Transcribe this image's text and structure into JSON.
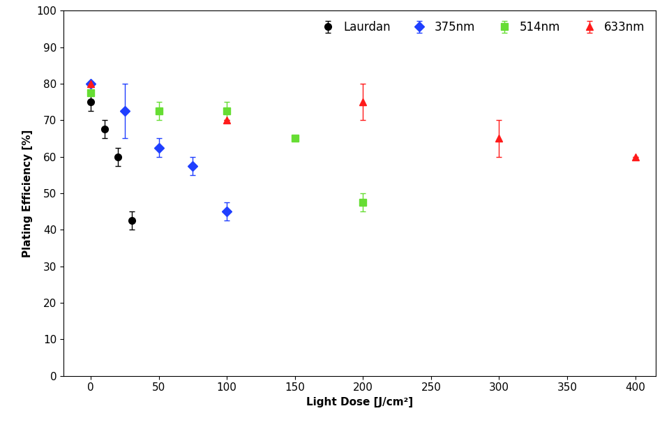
{
  "chart_data": {
    "type": "scatter",
    "x_label": "Light Dose [J/cm²]",
    "y_label": "Plating Efficiency [%]",
    "xlim": [
      -20,
      415
    ],
    "xticks": [
      0,
      50,
      100,
      150,
      200,
      250,
      300,
      350,
      400
    ],
    "ylim": [
      0,
      100
    ],
    "yticks": [
      0,
      10,
      20,
      30,
      40,
      50,
      60,
      70,
      80,
      90,
      100
    ],
    "grid": false,
    "legend": "upper right",
    "series": [
      {
        "name": "Laurdan",
        "color": "#000000",
        "marker": "circle",
        "x": [
          0,
          10,
          20,
          30
        ],
        "values": [
          75,
          67.5,
          60,
          42.5
        ],
        "errors": [
          2.5,
          2.5,
          2.5,
          2.5
        ]
      },
      {
        "name": "375nm",
        "color": "#1f3fff",
        "marker": "diamond",
        "x": [
          0,
          25,
          50,
          75,
          100
        ],
        "values": [
          80,
          72.5,
          62.5,
          57.5,
          45
        ],
        "errors": [
          0,
          7.5,
          2.5,
          2.5,
          2.5
        ]
      },
      {
        "name": "514nm",
        "color": "#66dd33",
        "marker": "square",
        "x": [
          0,
          50,
          100,
          150,
          200
        ],
        "values": [
          77.5,
          72.5,
          72.5,
          65,
          47.5
        ],
        "errors": [
          0,
          2.5,
          2.5,
          0,
          2.5
        ]
      },
      {
        "name": "633nm",
        "color": "#ff1a1a",
        "marker": "triangle",
        "x": [
          0,
          100,
          200,
          300,
          400
        ],
        "values": [
          80,
          70,
          75,
          65,
          60
        ],
        "errors": [
          0,
          0,
          5,
          5,
          0
        ]
      }
    ]
  }
}
